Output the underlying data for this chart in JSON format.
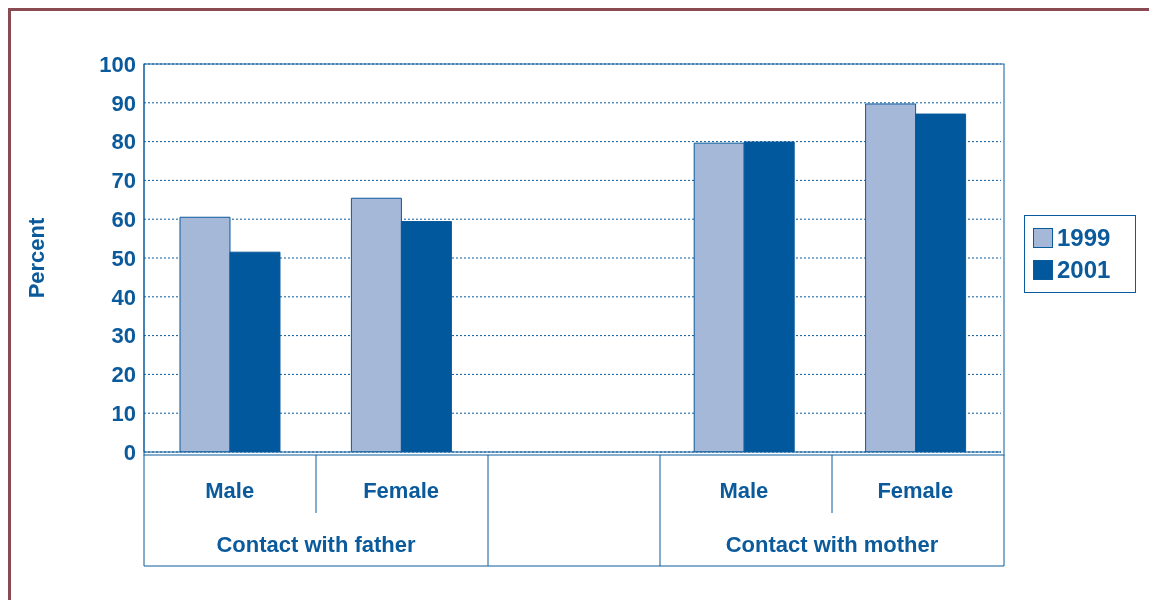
{
  "chart_data": {
    "type": "bar",
    "ylabel": "Percent",
    "categories": [
      "Male",
      "Female",
      null,
      "Male",
      "Female"
    ],
    "series": [
      {
        "name": "1999",
        "color": "#a6b8d8",
        "values": [
          60.5,
          65.4,
          null,
          79.6,
          89.7
        ]
      },
      {
        "name": "2001",
        "color": "#02589c",
        "values": [
          51.5,
          59.4,
          null,
          79.9,
          87.1
        ]
      }
    ],
    "annotations": [
      "Contact with father",
      "Contact with mother"
    ],
    "ylim": [
      0,
      100
    ],
    "yticks": [
      0,
      10,
      20,
      30,
      40,
      50,
      60,
      70,
      80,
      90,
      100
    ],
    "grid": "y",
    "legend": "right"
  }
}
